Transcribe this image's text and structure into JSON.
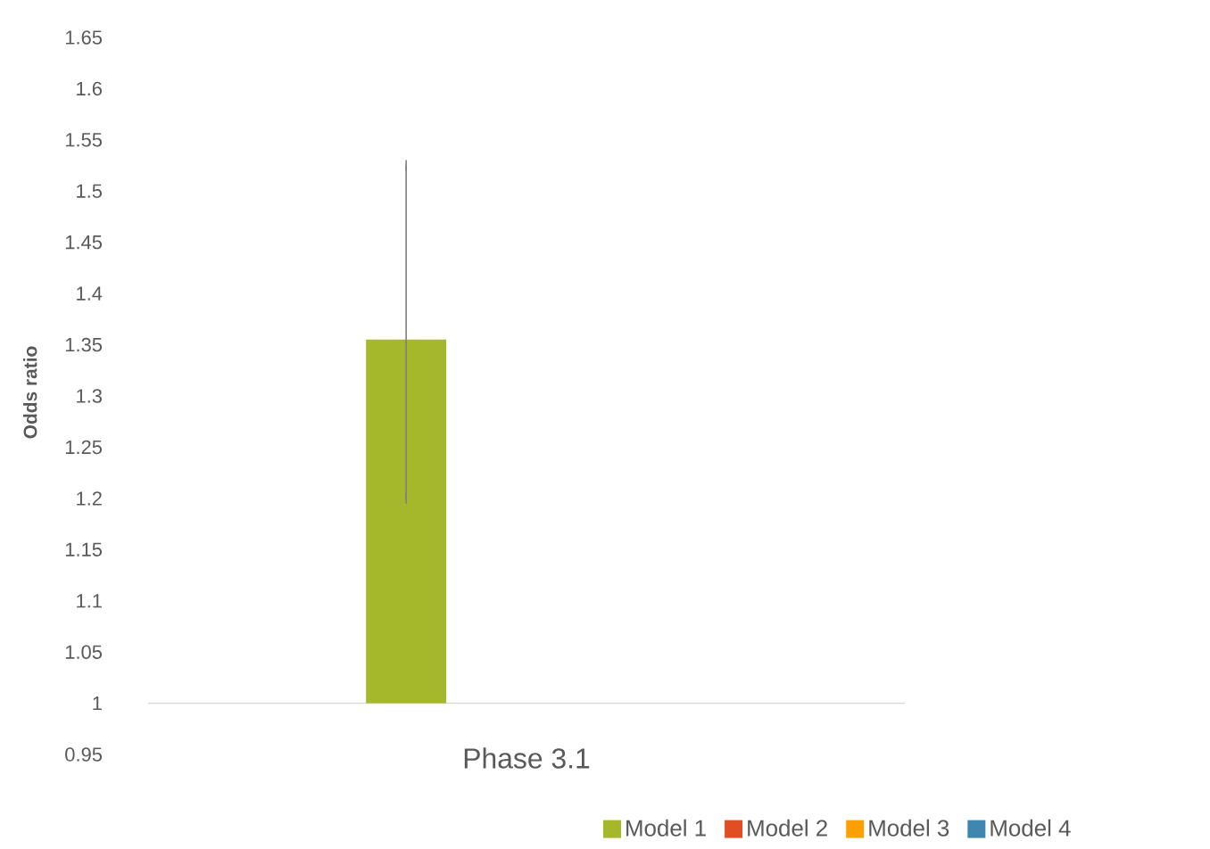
{
  "chart_data": {
    "type": "bar",
    "ylabel": "Odds ratio",
    "categories": [
      "Phase 3.1"
    ],
    "series": [
      {
        "name": "Model 1",
        "color": "#a5b72a",
        "values": [
          0.355
        ],
        "base": [
          1
        ],
        "errors": [
          [
            1.2,
            1.525
          ]
        ]
      },
      {
        "name": "Model 2",
        "color": "#e24e24",
        "values": [
          null
        ]
      },
      {
        "name": "Model 3",
        "color": "#fca002",
        "values": [
          null
        ]
      },
      {
        "name": "Model 4",
        "color": "#3f86b0",
        "values": [
          null
        ]
      }
    ],
    "ylim": [
      0.95,
      1.65
    ],
    "yticks": [
      0.95,
      1,
      1.05,
      1.1,
      1.15,
      1.2,
      1.25,
      1.3,
      1.35,
      1.4,
      1.45,
      1.5,
      1.55,
      1.6,
      1.65
    ],
    "ref_lines": [
      {
        "axis": "y",
        "value": 1,
        "color": "#d9d9d9"
      }
    ],
    "grid": false,
    "legend": "bottom"
  }
}
